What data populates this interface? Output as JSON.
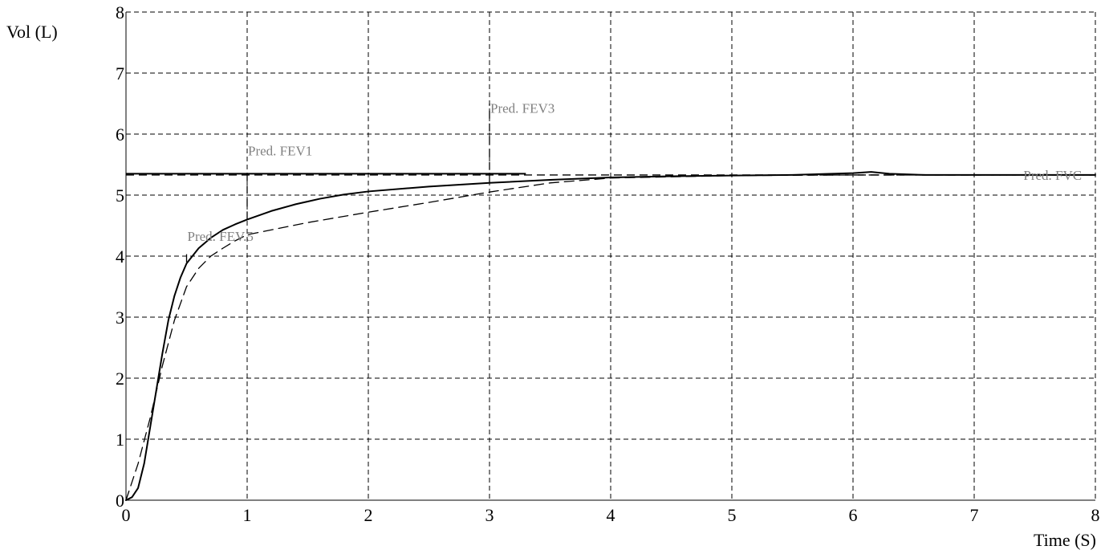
{
  "chart_data": {
    "type": "line",
    "xlabel": "Time (S)",
    "ylabel": "Vol (L)",
    "xlim": [
      0,
      8
    ],
    "ylim": [
      0,
      8
    ],
    "x_ticks": [
      "0",
      "1",
      "2",
      "3",
      "4",
      "5",
      "6",
      "7",
      "8"
    ],
    "y_ticks": [
      "0",
      "1",
      "2",
      "3",
      "4",
      "5",
      "6",
      "7",
      "8"
    ],
    "grid": true,
    "series": [
      {
        "style": "solid",
        "x": [
          0,
          0.05,
          0.1,
          0.15,
          0.2,
          0.25,
          0.3,
          0.35,
          0.4,
          0.45,
          0.5,
          0.6,
          0.7,
          0.8,
          0.9,
          1.0,
          1.2,
          1.4,
          1.6,
          1.8,
          2.0,
          2.5,
          3.0,
          3.5,
          4.0,
          4.5,
          5.0,
          5.5,
          6.0,
          6.15,
          6.3,
          6.6,
          7.0,
          7.5,
          8.0
        ],
        "y": [
          0,
          0.05,
          0.2,
          0.6,
          1.2,
          1.8,
          2.4,
          2.95,
          3.35,
          3.65,
          3.88,
          4.13,
          4.3,
          4.43,
          4.52,
          4.6,
          4.74,
          4.85,
          4.94,
          5.01,
          5.06,
          5.14,
          5.2,
          5.25,
          5.29,
          5.31,
          5.32,
          5.33,
          5.36,
          5.38,
          5.35,
          5.33,
          5.33,
          5.33,
          5.33
        ]
      },
      {
        "style": "dashed",
        "x": [
          0,
          0.1,
          0.2,
          0.3,
          0.4,
          0.5,
          0.6,
          0.7,
          0.8,
          0.9,
          1.0,
          1.5,
          2.0,
          2.5,
          3.0,
          3.5,
          4.0,
          5.0,
          6.0,
          7.0,
          8.0
        ],
        "y": [
          0,
          0.6,
          1.35,
          2.2,
          2.95,
          3.5,
          3.8,
          4.0,
          4.13,
          4.25,
          4.35,
          4.55,
          4.72,
          4.88,
          5.05,
          5.2,
          5.28,
          5.32,
          5.33,
          5.33,
          5.33
        ]
      }
    ],
    "reference_lines": [
      {
        "kind": "horizontal",
        "style": "solid",
        "y": 5.35,
        "x_from": 0,
        "x_to": 3.3
      },
      {
        "kind": "horizontal",
        "style": "dashed",
        "y": 5.33,
        "x_from": 0,
        "x_to": 8
      },
      {
        "kind": "vertical",
        "style": "dashed",
        "x": 1.0,
        "y_from": 4.6,
        "y_to": 5.35
      },
      {
        "kind": "vertical",
        "style": "dashed",
        "x": 3.0,
        "y_from": 5.2,
        "y_to": 6.5
      },
      {
        "kind": "vertical",
        "style": "dashed",
        "x": 0.5,
        "y_from": 3.9,
        "y_to": 4.05
      }
    ],
    "annotations": [
      {
        "text": "Pred. FEV1",
        "x": 1.0,
        "y": 5.65
      },
      {
        "text": "Pred. FEV3",
        "x": 3.0,
        "y": 6.35
      },
      {
        "text": "Pred. FEV.5",
        "x": 0.5,
        "y": 4.25
      },
      {
        "text": "Pred. FVC",
        "x": 7.4,
        "y": 5.25
      }
    ]
  }
}
